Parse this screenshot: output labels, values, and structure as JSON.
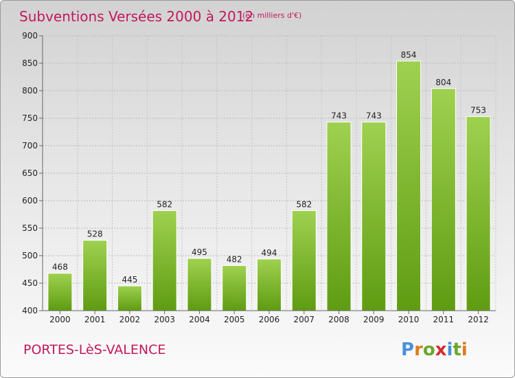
{
  "chart_data": {
    "type": "bar",
    "title": "Subventions Versées 2000 à 2012",
    "subtitle": "(en milliers d'€)",
    "categories": [
      "2000",
      "2001",
      "2002",
      "2003",
      "2004",
      "2005",
      "2006",
      "2007",
      "2008",
      "2009",
      "2010",
      "2011",
      "2012"
    ],
    "values": [
      468,
      528,
      445,
      582,
      495,
      482,
      494,
      582,
      743,
      743,
      854,
      804,
      753
    ],
    "ylim": [
      400,
      900
    ],
    "yticks": [
      400,
      450,
      500,
      550,
      600,
      650,
      700,
      750,
      800,
      850,
      900
    ],
    "grid": true,
    "bar_color": "#7cbb2a"
  },
  "footer": {
    "town": "PORTES-LèS-VALENCE",
    "logo": "Proxiti"
  },
  "colors": {
    "title": "#c2185b",
    "logo_letters": [
      "#4a90d9",
      "#e07a1f",
      "#6aa82a",
      "#d62c2c",
      "#4a90d9",
      "#6aa82a",
      "#e07a1f"
    ]
  }
}
